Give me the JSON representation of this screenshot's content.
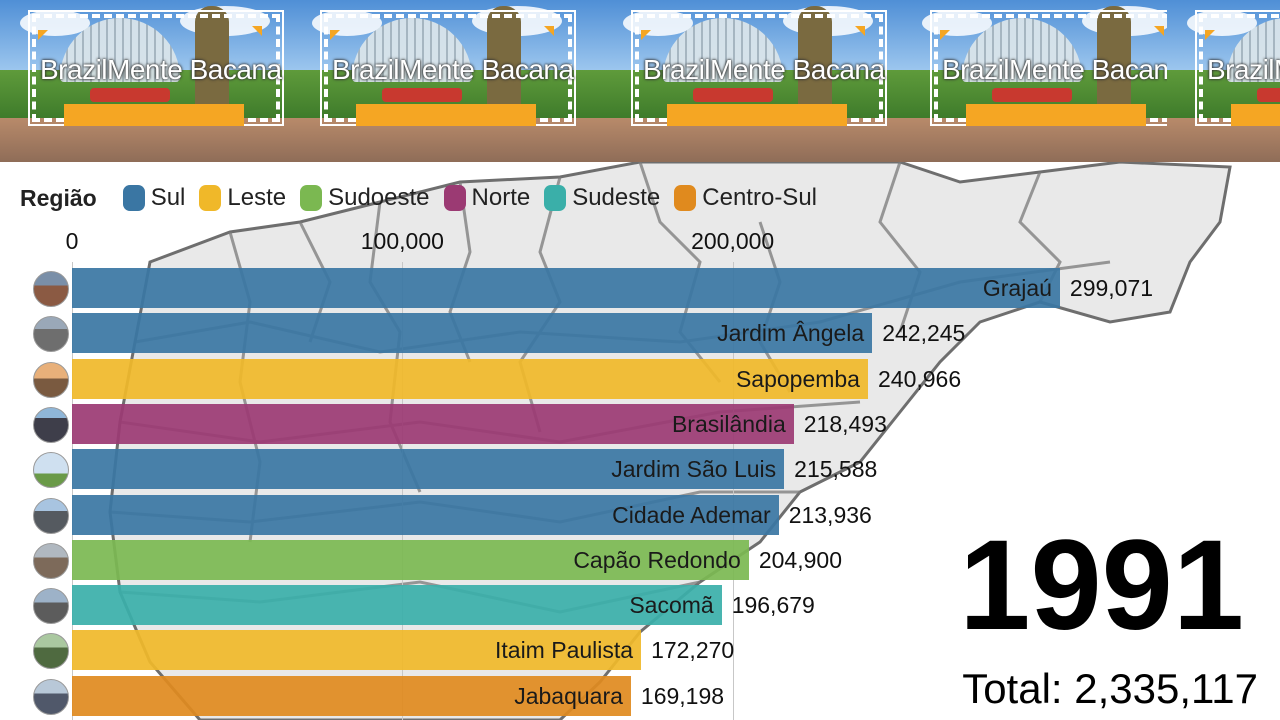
{
  "banner": {
    "brand_text": "BrazilMente Bacana"
  },
  "legend": {
    "title": "Região",
    "items": [
      {
        "label": "Sul",
        "color": "#3a76a3"
      },
      {
        "label": "Leste",
        "color": "#f0b829"
      },
      {
        "label": "Sudoeste",
        "color": "#7bb851"
      },
      {
        "label": "Norte",
        "color": "#9b3a73"
      },
      {
        "label": "Sudeste",
        "color": "#3aafa9"
      },
      {
        "label": "Centro-Sul",
        "color": "#e08a1e"
      }
    ]
  },
  "chart_data": {
    "type": "bar",
    "orientation": "horizontal",
    "title": "",
    "xlim": [
      0,
      300000
    ],
    "ticks": [
      "0",
      "100,000",
      "200,000"
    ],
    "tick_values": [
      0,
      100000,
      200000
    ],
    "grid": true,
    "categories": [
      "Grajaú",
      "Jardim Ângela",
      "Sapopemba",
      "Brasilândia",
      "Jardim São Luis",
      "Cidade Ademar",
      "Capão Redondo",
      "Sacomã",
      "Itaim Paulista",
      "Jabaquara"
    ],
    "values": [
      299071,
      242245,
      240966,
      218493,
      215588,
      213936,
      204900,
      196679,
      172270,
      169198
    ],
    "value_labels": [
      "299,071",
      "242,245",
      "240,966",
      "218,493",
      "215,588",
      "213,936",
      "204,900",
      "196,679",
      "172,270",
      "169,198"
    ],
    "regions": [
      "Sul",
      "Sul",
      "Leste",
      "Norte",
      "Sul",
      "Sul",
      "Sudoeste",
      "Sudeste",
      "Leste",
      "Centro-Sul"
    ],
    "year": "1991",
    "total": "Total: 2,335,117"
  }
}
